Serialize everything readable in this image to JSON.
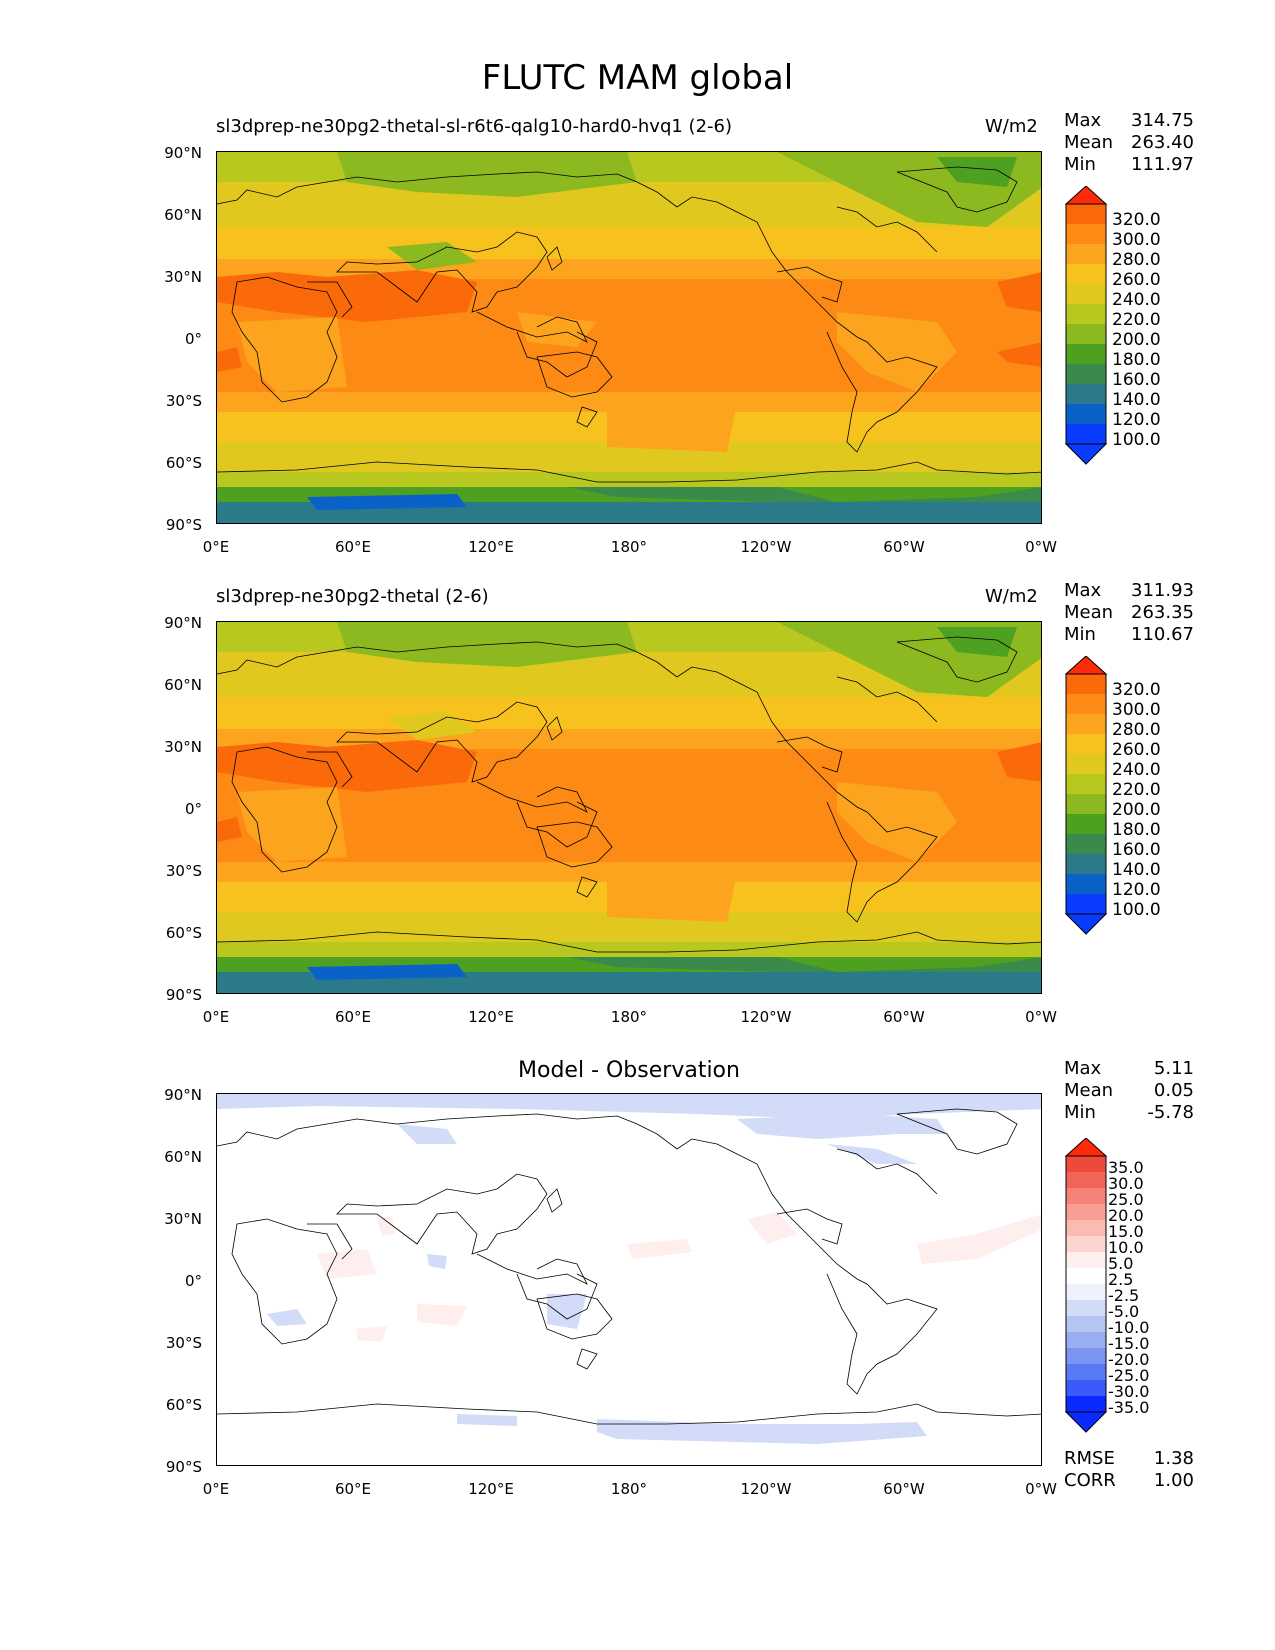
{
  "title": "FLUTC MAM global",
  "lat_labels": [
    "90°N",
    "60°N",
    "30°N",
    "0°",
    "30°S",
    "60°S",
    "90°S"
  ],
  "lon_labels": [
    "0°E",
    "60°E",
    "120°E",
    "180°",
    "120°W",
    "60°W",
    "0°W"
  ],
  "panels": [
    {
      "title_left": "sl3dprep-ne30pg2-thetal-sl-r6t6-qalg10-hard0-hvq1 (2-6)",
      "units": "W/m2",
      "stats": [
        [
          "Max",
          "314.75"
        ],
        [
          "Mean",
          "263.40"
        ],
        [
          "Min",
          "111.97"
        ]
      ],
      "colorbar_ticks": [
        "320.0",
        "300.0",
        "280.0",
        "260.0",
        "240.0",
        "220.0",
        "200.0",
        "180.0",
        "160.0",
        "140.0",
        "120.0",
        "100.0"
      ]
    },
    {
      "title_left": "sl3dprep-ne30pg2-thetal (2-6)",
      "units": "W/m2",
      "stats": [
        [
          "Max",
          "311.93"
        ],
        [
          "Mean",
          "263.35"
        ],
        [
          "Min",
          "110.67"
        ]
      ],
      "colorbar_ticks": [
        "320.0",
        "300.0",
        "280.0",
        "260.0",
        "240.0",
        "220.0",
        "200.0",
        "180.0",
        "160.0",
        "140.0",
        "120.0",
        "100.0"
      ]
    },
    {
      "title_center": "Model - Observation",
      "stats": [
        [
          "Max",
          "5.11"
        ],
        [
          "Mean",
          "0.05"
        ],
        [
          "Min",
          "-5.78"
        ]
      ],
      "colorbar_ticks": [
        "35.0",
        "30.0",
        "25.0",
        "20.0",
        "15.0",
        "10.0",
        "5.0",
        "2.5",
        "-2.5",
        "-5.0",
        "-10.0",
        "-15.0",
        "-20.0",
        "-25.0",
        "-30.0",
        "-35.0"
      ],
      "bottom_stats": [
        [
          "RMSE",
          "1.38"
        ],
        [
          "CORR",
          "1.00"
        ]
      ]
    }
  ],
  "colors": {
    "abs_scale": [
      "#0a3cff",
      "#0a62c8",
      "#2a7a8a",
      "#3a8a4c",
      "#4ea020",
      "#8cb820",
      "#b8c81e",
      "#e0c81e",
      "#f8c21e",
      "#fca41e",
      "#fc8a14",
      "#fa6a0a",
      "#ff2a0a"
    ],
    "diff_scale": [
      "#0a2aff",
      "#3a5afa",
      "#5a7af5",
      "#7a95f0",
      "#98aef0",
      "#b5c5f3",
      "#d2dcf8",
      "#eef2fd",
      "#ffffff",
      "#ffeeee",
      "#fdd5d0",
      "#fbbab2",
      "#f89e94",
      "#f58276",
      "#f26458",
      "#ee4a3c",
      "#ff2a0a"
    ]
  }
}
